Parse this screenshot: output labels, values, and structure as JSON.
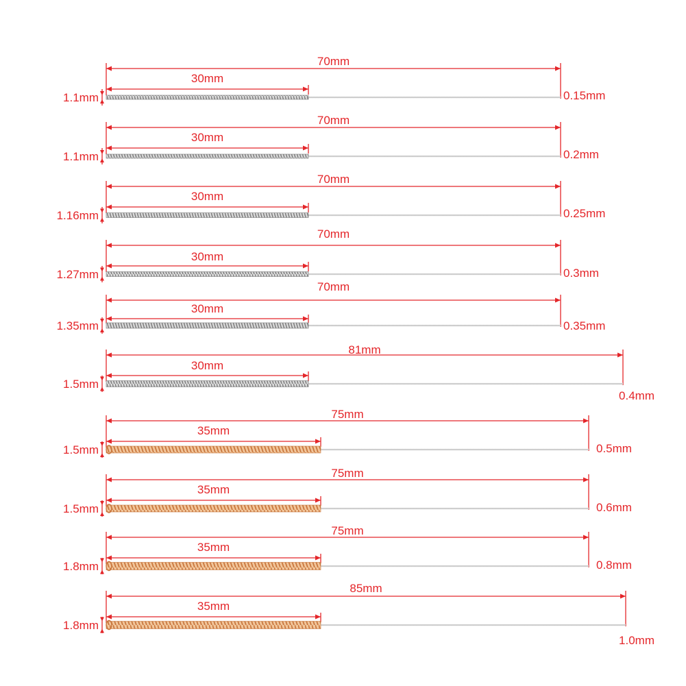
{
  "colors": {
    "annotation": "#e4262a",
    "coil_silver": "#9a9a9a",
    "coil_gold": "#d8935a",
    "needle": "#c9c9c9",
    "background": "#ffffff"
  },
  "needles": [
    {
      "total": "70mm",
      "handle": "30mm",
      "handle_diameter": "1.1mm",
      "tip": "0.15mm",
      "handle_style": "silver"
    },
    {
      "total": "70mm",
      "handle": "30mm",
      "handle_diameter": "1.1mm",
      "tip": "0.2mm",
      "handle_style": "silver"
    },
    {
      "total": "70mm",
      "handle": "30mm",
      "handle_diameter": "1.16mm",
      "tip": "0.25mm",
      "handle_style": "silver"
    },
    {
      "total": "70mm",
      "handle": "30mm",
      "handle_diameter": "1.27mm",
      "tip": "0.3mm",
      "handle_style": "silver"
    },
    {
      "total": "70mm",
      "handle": "30mm",
      "handle_diameter": "1.35mm",
      "tip": "0.35mm",
      "handle_style": "silver"
    },
    {
      "total": "81mm",
      "handle": "30mm",
      "handle_diameter": "1.5mm",
      "tip": "0.4mm",
      "handle_style": "silver"
    },
    {
      "total": "75mm",
      "handle": "35mm",
      "handle_diameter": "1.5mm",
      "tip": "0.5mm",
      "handle_style": "gold"
    },
    {
      "total": "75mm",
      "handle": "35mm",
      "handle_diameter": "1.5mm",
      "tip": "0.6mm",
      "handle_style": "gold"
    },
    {
      "total": "75mm",
      "handle": "35mm",
      "handle_diameter": "1.8mm",
      "tip": "0.8mm",
      "handle_style": "gold"
    },
    {
      "total": "85mm",
      "handle": "35mm",
      "handle_diameter": "1.8mm",
      "tip": "1.0mm",
      "handle_style": "gold"
    }
  ]
}
